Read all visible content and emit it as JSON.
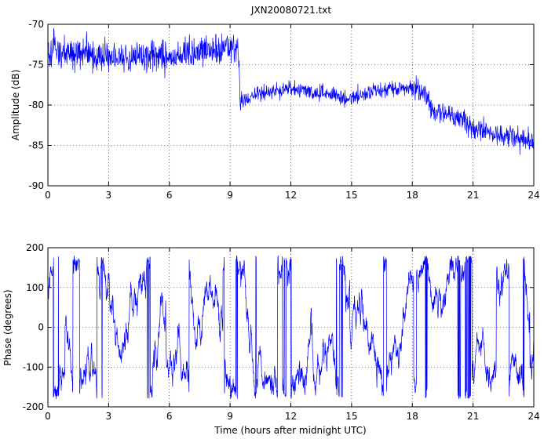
{
  "chart_data": [
    {
      "type": "line",
      "title": "JXN20080721.txt",
      "xlabel": "",
      "ylabel": "Amplitude (dB)",
      "xlim": [
        0,
        24
      ],
      "ylim": [
        -90,
        -70
      ],
      "xticks": [
        0,
        3,
        6,
        9,
        12,
        15,
        18,
        21,
        24
      ],
      "yticks": [
        -90,
        -85,
        -80,
        -75,
        -70
      ],
      "grid": true,
      "color": "#0000ff",
      "x": [
        0,
        1,
        2,
        3,
        4,
        5,
        6,
        7,
        8,
        9,
        9.4,
        9.5,
        10,
        11,
        12,
        13,
        14,
        15,
        16,
        17,
        18,
        18.6,
        19,
        20,
        21,
        22,
        23,
        24
      ],
      "values": [
        -73.5,
        -73.5,
        -73.8,
        -74,
        -74.2,
        -74,
        -74,
        -73.5,
        -73,
        -72.8,
        -72.5,
        -79.5,
        -79,
        -78.3,
        -78,
        -78.3,
        -78.8,
        -79.2,
        -78.2,
        -78,
        -77.8,
        -78.5,
        -80.3,
        -81.3,
        -82.8,
        -83.5,
        -84,
        -84.5
      ],
      "noise_amplitude": [
        1.8,
        1.8,
        1.8,
        1.8,
        1.8,
        1.8,
        1.8,
        1.8,
        1.8,
        1.8,
        1.8,
        0.9,
        0.9,
        0.9,
        0.9,
        0.9,
        0.9,
        0.9,
        0.9,
        1.0,
        1.0,
        1.3,
        1.3,
        1.3,
        1.3,
        1.3,
        1.3,
        1.3
      ]
    },
    {
      "type": "line",
      "title": "",
      "xlabel": "Time (hours after midnight UTC)",
      "ylabel": "Phase (degrees)",
      "xlim": [
        0,
        24
      ],
      "ylim": [
        -200,
        200
      ],
      "xticks": [
        0,
        3,
        6,
        9,
        12,
        15,
        18,
        21,
        24
      ],
      "yticks": [
        -200,
        -100,
        0,
        100,
        200
      ],
      "grid": true,
      "color": "#0000ff",
      "wrap_range": [
        -180,
        180
      ],
      "sample_count": 2400
    }
  ]
}
